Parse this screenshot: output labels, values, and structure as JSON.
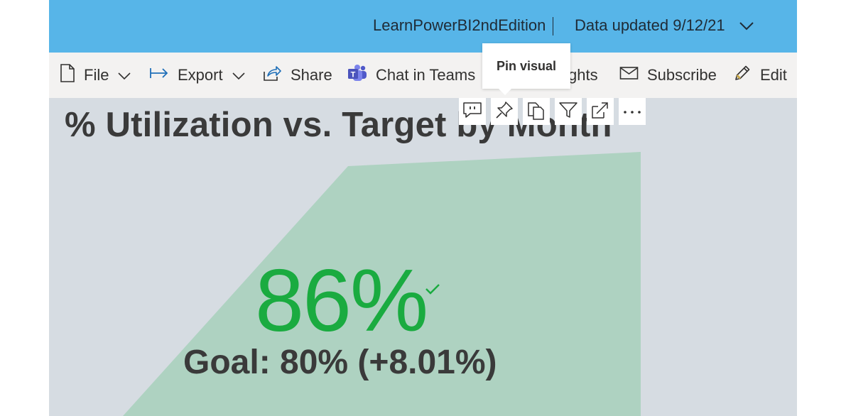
{
  "header": {
    "workspace_name": "LearnPowerBI2ndEdition",
    "separator": "|",
    "data_updated": "Data updated 9/12/21",
    "background_color": "#57b5e8"
  },
  "toolbar": {
    "items": [
      {
        "label": "File",
        "icon": "file-icon",
        "has_dropdown": true
      },
      {
        "label": "Export",
        "icon": "export-icon",
        "has_dropdown": true
      },
      {
        "label": "Share",
        "icon": "share-icon"
      },
      {
        "label": "Chat in Teams",
        "icon": "teams-icon"
      },
      {
        "label": "ghts",
        "icon": "insights-icon"
      },
      {
        "label": "Subscribe",
        "icon": "mail-icon"
      },
      {
        "label": "Edit",
        "icon": "pencil-icon"
      }
    ]
  },
  "tooltip": {
    "text": "Pin visual"
  },
  "visual_header": {
    "buttons": [
      "comment-icon",
      "pin-icon",
      "copy-icon",
      "filter-icon",
      "focus-mode-icon",
      "more-options-icon"
    ]
  },
  "visual": {
    "title": "% Utilization vs. Target by Month",
    "kpi_value": "86%",
    "kpi_goal": "Goal: 80%",
    "kpi_delta": "(+8.01%)",
    "kpi_color": "#1aab40",
    "status": "check-icon"
  }
}
